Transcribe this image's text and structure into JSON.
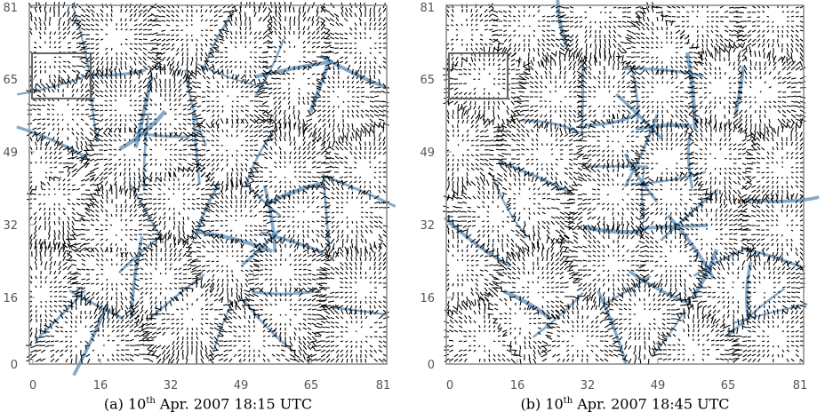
{
  "panels": [
    {
      "id": "a",
      "caption": {
        "prefix": "(a)  10",
        "sup": "th",
        "suffix": " Apr. 2007 18:15 UTC"
      },
      "x_ticks": [
        "0",
        "16",
        "32",
        "49",
        "65",
        "81"
      ],
      "y_ticks": [
        "81",
        "65",
        "49",
        "32",
        "16",
        "0"
      ],
      "seed": 7
    },
    {
      "id": "b",
      "caption": {
        "prefix": "(b)  10",
        "sup": "th",
        "suffix": " Apr. 2007 18:45 UTC"
      },
      "x_ticks": [
        "0",
        "16",
        "32",
        "49",
        "65",
        "81"
      ],
      "y_ticks": [
        "81",
        "65",
        "49",
        "32",
        "16",
        "0"
      ],
      "seed": 13
    }
  ],
  "colors": {
    "arrows": "#000000",
    "lanes": "#4f86b5",
    "frame": "#888888",
    "highlight_box": "#666666"
  }
}
